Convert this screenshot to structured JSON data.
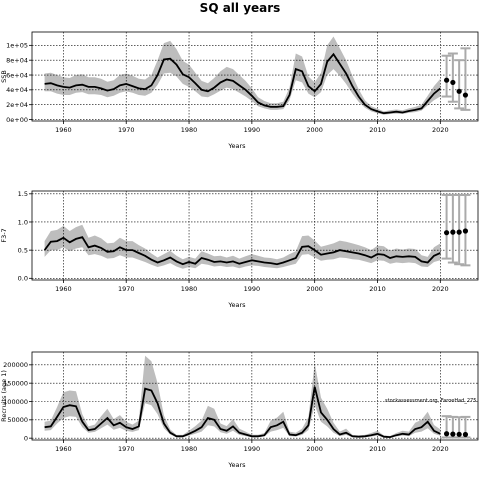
{
  "figure": {
    "title": "SQ all years"
  },
  "watermark": "stockassessment.org, FaroeHad_275",
  "colors": {
    "band": "#bdbdbd",
    "line": "#000000",
    "grid": "#000000",
    "errorbar": "#aaaaaa",
    "point": "#000000"
  },
  "chart_data": [
    {
      "type": "line",
      "ylabel": "SSB",
      "xlabel": "Years",
      "xlim": [
        1955,
        2026
      ],
      "ylim": [
        -2000,
        118000
      ],
      "xticks": [
        1960,
        1970,
        1980,
        1990,
        2000,
        2010,
        2020
      ],
      "yticks": [
        0,
        20000,
        40000,
        60000,
        80000,
        100000
      ],
      "yticklabels": [
        "0e+00",
        "2e+04",
        "4e+04",
        "6e+04",
        "8e+04",
        "1e+05"
      ],
      "grid": true,
      "years": [
        1957,
        1958,
        1959,
        1960,
        1961,
        1962,
        1963,
        1964,
        1965,
        1966,
        1967,
        1968,
        1969,
        1970,
        1971,
        1972,
        1973,
        1974,
        1975,
        1976,
        1977,
        1978,
        1979,
        1980,
        1981,
        1982,
        1983,
        1984,
        1985,
        1986,
        1987,
        1988,
        1989,
        1990,
        1991,
        1992,
        1993,
        1994,
        1995,
        1996,
        1997,
        1998,
        1999,
        2000,
        2001,
        2002,
        2003,
        2004,
        2005,
        2006,
        2007,
        2008,
        2009,
        2010,
        2011,
        2012,
        2013,
        2014,
        2015,
        2016,
        2017,
        2018,
        2019,
        2020
      ],
      "estimate": [
        48000,
        49000,
        46000,
        44000,
        43000,
        46000,
        47000,
        44000,
        44000,
        42000,
        39000,
        41000,
        46000,
        48000,
        45000,
        42000,
        41000,
        46000,
        60000,
        81000,
        82000,
        74000,
        61000,
        57000,
        49000,
        40000,
        38000,
        43000,
        50000,
        54000,
        52000,
        46000,
        40000,
        32000,
        23000,
        19000,
        17000,
        17000,
        18000,
        33000,
        68000,
        65000,
        45000,
        38000,
        48000,
        78000,
        88000,
        75000,
        62000,
        45000,
        31000,
        20000,
        14000,
        11000,
        8500,
        9500,
        10500,
        9500,
        11500,
        13000,
        15000,
        25000,
        35000,
        42000
      ],
      "lower": [
        38000,
        38000,
        35000,
        33000,
        33000,
        36000,
        37000,
        34000,
        34000,
        33000,
        30000,
        32000,
        36000,
        38000,
        36000,
        33000,
        32000,
        36000,
        47000,
        62000,
        63000,
        58000,
        48000,
        44000,
        38000,
        31000,
        30000,
        34000,
        39000,
        43000,
        41000,
        36000,
        31000,
        25000,
        18000,
        15000,
        13000,
        13000,
        14000,
        26000,
        53000,
        50000,
        35000,
        30000,
        37000,
        60000,
        68000,
        59000,
        48000,
        35000,
        24000,
        16000,
        11000,
        8500,
        6500,
        7500,
        8000,
        7500,
        9000,
        10000,
        12000,
        19000,
        26000,
        31000
      ],
      "upper": [
        62000,
        63000,
        60000,
        57000,
        56000,
        60000,
        61000,
        57000,
        57000,
        55000,
        51000,
        53000,
        60000,
        62000,
        59000,
        55000,
        54000,
        60000,
        80000,
        103000,
        106000,
        95000,
        79000,
        74000,
        63000,
        52000,
        49000,
        56000,
        65000,
        71000,
        68000,
        60000,
        52000,
        42000,
        30000,
        25000,
        22000,
        22000,
        24000,
        43000,
        89000,
        85000,
        58000,
        50000,
        63000,
        100000,
        112000,
        96000,
        80000,
        59000,
        41000,
        26000,
        18000,
        14500,
        11000,
        12500,
        13500,
        12500,
        15000,
        17000,
        20000,
        32000,
        45000,
        55000
      ],
      "forecast": [
        {
          "year": 2021,
          "value": 53000,
          "low": 31000,
          "high": 86000
        },
        {
          "year": 2022,
          "value": 50000,
          "low": 24000,
          "high": 89000
        },
        {
          "year": 2023,
          "value": 38000,
          "low": 15000,
          "high": 80000
        },
        {
          "year": 2024,
          "value": 33000,
          "low": 13000,
          "high": 96000
        }
      ]
    },
    {
      "type": "line",
      "ylabel": "F3-7",
      "xlabel": "Years",
      "xlim": [
        1955,
        2026
      ],
      "ylim": [
        -0.03,
        1.55
      ],
      "xticks": [
        1960,
        1970,
        1980,
        1990,
        2000,
        2010,
        2020
      ],
      "yticks": [
        0,
        0.5,
        1.0,
        1.5
      ],
      "yticklabels": [
        "0.0",
        "0.5",
        "1.0",
        "1.5"
      ],
      "grid": true,
      "years": [
        1957,
        1958,
        1959,
        1960,
        1961,
        1962,
        1963,
        1964,
        1965,
        1966,
        1967,
        1968,
        1969,
        1970,
        1971,
        1972,
        1973,
        1974,
        1975,
        1976,
        1977,
        1978,
        1979,
        1980,
        1981,
        1982,
        1983,
        1984,
        1985,
        1986,
        1987,
        1988,
        1989,
        1990,
        1991,
        1992,
        1993,
        1994,
        1995,
        1996,
        1997,
        1998,
        1999,
        2000,
        2001,
        2002,
        2003,
        2004,
        2005,
        2006,
        2007,
        2008,
        2009,
        2010,
        2011,
        2012,
        2013,
        2014,
        2015,
        2016,
        2017,
        2018,
        2019,
        2020
      ],
      "estimate": [
        0.5,
        0.65,
        0.66,
        0.72,
        0.64,
        0.7,
        0.73,
        0.55,
        0.58,
        0.54,
        0.47,
        0.48,
        0.55,
        0.5,
        0.5,
        0.45,
        0.4,
        0.33,
        0.28,
        0.32,
        0.37,
        0.3,
        0.25,
        0.29,
        0.26,
        0.36,
        0.33,
        0.29,
        0.3,
        0.28,
        0.3,
        0.26,
        0.29,
        0.32,
        0.3,
        0.28,
        0.27,
        0.25,
        0.28,
        0.32,
        0.36,
        0.56,
        0.57,
        0.5,
        0.42,
        0.44,
        0.46,
        0.5,
        0.48,
        0.46,
        0.44,
        0.41,
        0.37,
        0.43,
        0.42,
        0.36,
        0.39,
        0.38,
        0.39,
        0.38,
        0.3,
        0.28,
        0.4,
        0.45
      ],
      "lower": [
        0.38,
        0.5,
        0.5,
        0.55,
        0.48,
        0.53,
        0.55,
        0.41,
        0.43,
        0.4,
        0.35,
        0.36,
        0.41,
        0.37,
        0.37,
        0.33,
        0.29,
        0.24,
        0.2,
        0.23,
        0.27,
        0.21,
        0.17,
        0.2,
        0.18,
        0.26,
        0.24,
        0.21,
        0.22,
        0.2,
        0.21,
        0.18,
        0.21,
        0.23,
        0.22,
        0.2,
        0.19,
        0.18,
        0.2,
        0.23,
        0.26,
        0.42,
        0.43,
        0.37,
        0.31,
        0.33,
        0.34,
        0.37,
        0.36,
        0.34,
        0.33,
        0.3,
        0.27,
        0.32,
        0.31,
        0.26,
        0.28,
        0.27,
        0.28,
        0.27,
        0.21,
        0.2,
        0.29,
        0.32
      ],
      "upper": [
        0.66,
        0.84,
        0.86,
        0.93,
        0.84,
        0.91,
        0.95,
        0.72,
        0.76,
        0.71,
        0.62,
        0.63,
        0.72,
        0.66,
        0.66,
        0.59,
        0.53,
        0.44,
        0.37,
        0.43,
        0.49,
        0.4,
        0.34,
        0.38,
        0.35,
        0.48,
        0.44,
        0.39,
        0.4,
        0.37,
        0.4,
        0.35,
        0.39,
        0.43,
        0.4,
        0.37,
        0.36,
        0.34,
        0.37,
        0.43,
        0.48,
        0.75,
        0.76,
        0.67,
        0.56,
        0.59,
        0.62,
        0.67,
        0.65,
        0.62,
        0.59,
        0.55,
        0.5,
        0.58,
        0.57,
        0.49,
        0.53,
        0.51,
        0.53,
        0.52,
        0.41,
        0.38,
        0.55,
        0.62
      ],
      "forecast": [
        {
          "year": 2021,
          "value": 0.81,
          "low": 0.35,
          "high": 1.48
        },
        {
          "year": 2022,
          "value": 0.82,
          "low": 0.28,
          "high": 1.48
        },
        {
          "year": 2023,
          "value": 0.82,
          "low": 0.25,
          "high": 1.48
        },
        {
          "year": 2024,
          "value": 0.84,
          "low": 0.23,
          "high": 1.48
        }
      ]
    },
    {
      "type": "line",
      "ylabel": "Recruits (age 1)",
      "xlabel": "Years",
      "xlim": [
        1955,
        2026
      ],
      "ylim": [
        -5000,
        235000
      ],
      "xticks": [
        1960,
        1970,
        1980,
        1990,
        2000,
        2010,
        2020
      ],
      "yticks": [
        0,
        50000,
        100000,
        150000,
        200000
      ],
      "yticklabels": [
        "0",
        "50000",
        "100000",
        "150000",
        "200000"
      ],
      "grid": true,
      "years": [
        1957,
        1958,
        1959,
        1960,
        1961,
        1962,
        1963,
        1964,
        1965,
        1966,
        1967,
        1968,
        1969,
        1970,
        1971,
        1972,
        1973,
        1974,
        1975,
        1976,
        1977,
        1978,
        1979,
        1980,
        1981,
        1982,
        1983,
        1984,
        1985,
        1986,
        1987,
        1988,
        1989,
        1990,
        1991,
        1992,
        1993,
        1994,
        1995,
        1996,
        1997,
        1998,
        1999,
        2000,
        2001,
        2002,
        2003,
        2004,
        2005,
        2006,
        2007,
        2008,
        2009,
        2010,
        2011,
        2012,
        2013,
        2014,
        2015,
        2016,
        2017,
        2018,
        2019,
        2020
      ],
      "estimate": [
        30000,
        32000,
        58000,
        85000,
        90000,
        87000,
        45000,
        22000,
        25000,
        40000,
        55000,
        35000,
        42000,
        30000,
        25000,
        32000,
        135000,
        130000,
        95000,
        40000,
        15000,
        5000,
        5000,
        12000,
        20000,
        30000,
        55000,
        50000,
        25000,
        20000,
        32000,
        15000,
        10000,
        5000,
        5000,
        8000,
        30000,
        35000,
        45000,
        10000,
        8000,
        15000,
        35000,
        140000,
        70000,
        50000,
        25000,
        10000,
        15000,
        5000,
        4000,
        5000,
        8000,
        12000,
        4000,
        3000,
        8000,
        12000,
        10000,
        25000,
        30000,
        45000,
        20000,
        12000
      ],
      "lower": [
        20000,
        22000,
        40000,
        55000,
        60000,
        58000,
        30000,
        15000,
        17000,
        27000,
        37000,
        23000,
        28000,
        20000,
        17000,
        22000,
        95000,
        90000,
        65000,
        27000,
        10000,
        2500,
        2500,
        7000,
        12000,
        18000,
        35000,
        32000,
        16000,
        12000,
        20000,
        9000,
        5500,
        2500,
        2500,
        4500,
        18000,
        22000,
        28000,
        5500,
        4500,
        9000,
        22000,
        90000,
        45000,
        32000,
        15000,
        5500,
        9000,
        2500,
        2000,
        2500,
        4500,
        7000,
        2000,
        1500,
        4500,
        7000,
        5500,
        15000,
        18000,
        27000,
        12000,
        6500
      ],
      "upper": [
        45000,
        48000,
        85000,
        125000,
        130000,
        128000,
        65000,
        32000,
        37000,
        60000,
        80000,
        52000,
        63000,
        45000,
        37000,
        48000,
        225000,
        210000,
        150000,
        62000,
        24000,
        9000,
        9000,
        20000,
        33000,
        48000,
        88000,
        80000,
        40000,
        33000,
        52000,
        26000,
        18000,
        9500,
        9500,
        14000,
        48000,
        56000,
        72000,
        18000,
        15000,
        26000,
        57000,
        205000,
        110000,
        80000,
        42000,
        18000,
        26000,
        9000,
        7500,
        9000,
        14000,
        20000,
        7500,
        6000,
        14000,
        20000,
        18000,
        42000,
        50000,
        72000,
        36000,
        24000
      ],
      "forecast": [
        {
          "year": 2021,
          "value": 12000,
          "low": 2000,
          "high": 60000
        },
        {
          "year": 2022,
          "value": 11000,
          "low": 2000,
          "high": 58000
        },
        {
          "year": 2023,
          "value": 10500,
          "low": 2000,
          "high": 57000
        },
        {
          "year": 2024,
          "value": 10000,
          "low": 2000,
          "high": 58000
        }
      ]
    }
  ]
}
